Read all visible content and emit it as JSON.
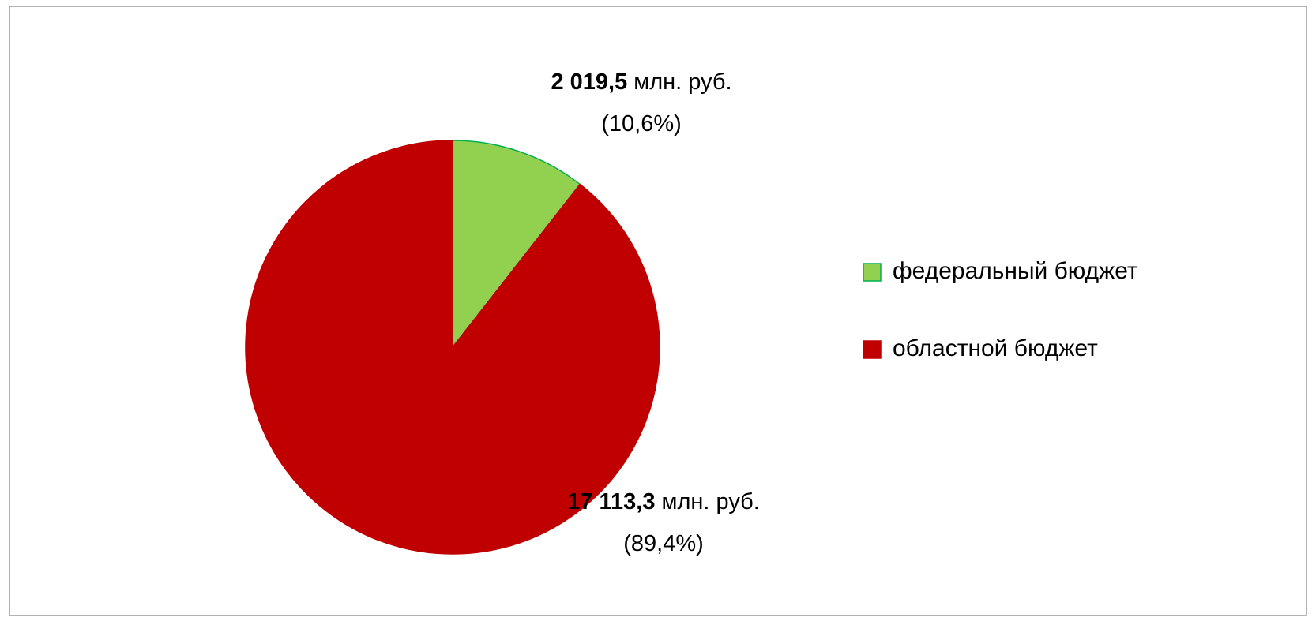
{
  "chart_data": {
    "type": "pie",
    "categories": [
      "федеральный бюджет",
      "областной бюджет"
    ],
    "values": [
      2019.5,
      17113.3
    ],
    "value_labels": [
      "2 019,5",
      "17 113,3"
    ],
    "unit": "млн. руб.",
    "percent_labels": [
      "(10,6%)",
      "(89,4%)"
    ],
    "colors": [
      "#92d050",
      "#c00000"
    ],
    "legend": "right"
  }
}
